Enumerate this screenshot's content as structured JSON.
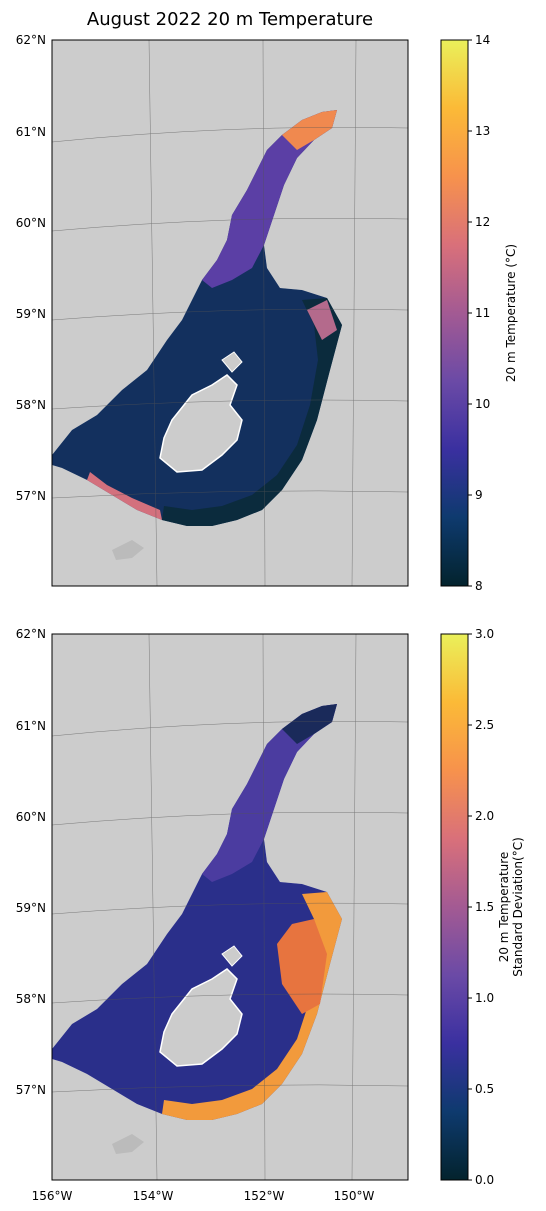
{
  "title": "August 2022 20 m Temperature",
  "latitude_ticks": [
    "62°N",
    "61°N",
    "60°N",
    "59°N",
    "58°N",
    "57°N"
  ],
  "longitude_ticks": [
    "156°W",
    "154°W",
    "152°W",
    "150°W"
  ],
  "panels": [
    {
      "name": "temperature",
      "colorbar": {
        "label_lines": [
          "20 m Temperature (°C)"
        ],
        "min": 8,
        "max": 14,
        "ticks": [
          8,
          9,
          10,
          11,
          12,
          13,
          14
        ],
        "tick_labels": [
          "8",
          "9",
          "10",
          "11",
          "12",
          "13",
          "14"
        ],
        "colormap": [
          "#03232d",
          "#0e3a6e",
          "#3a30a0",
          "#6b4aa6",
          "#a35a93",
          "#d9707a",
          "#f7924c",
          "#fbba37",
          "#eaf05a"
        ]
      }
    },
    {
      "name": "standard-deviation",
      "colorbar": {
        "label_lines": [
          "20 m Temperature",
          "Standard Deviation(°C)"
        ],
        "min": 0,
        "max": 3,
        "ticks": [
          0,
          0.5,
          1,
          1.5,
          2,
          2.5,
          3
        ],
        "tick_labels": [
          "0.0",
          "0.5",
          "1.0",
          "1.5",
          "2.0",
          "2.5",
          "3.0"
        ],
        "colormap": [
          "#03232d",
          "#0e3a6e",
          "#3a30a0",
          "#6b4aa6",
          "#a35a93",
          "#d9707a",
          "#f7924c",
          "#fbba37",
          "#eaf05a"
        ]
      }
    }
  ],
  "map_colors": {
    "land": "#cccccc",
    "ocean": "#ffffff",
    "grid": "#555555"
  }
}
